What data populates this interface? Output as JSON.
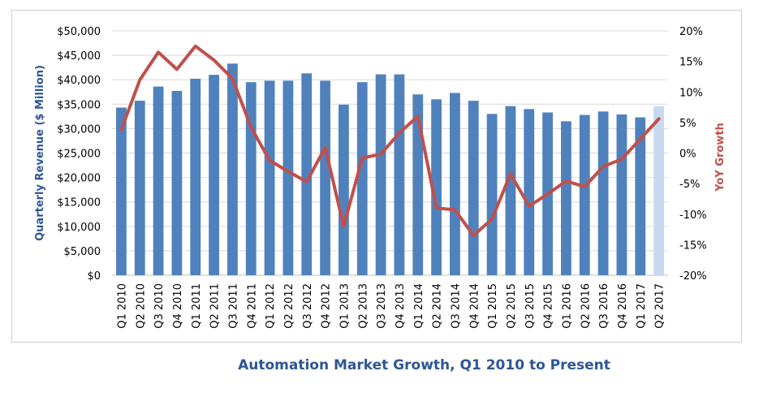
{
  "caption": "Automation Market Growth, Q1 2010 to Present",
  "chart_data": {
    "type": "bar",
    "categories": [
      "Q1 2010",
      "Q2 2010",
      "Q3 2010",
      "Q4 2010",
      "Q1 2011",
      "Q2 2011",
      "Q3 2011",
      "Q4 2011",
      "Q1 2012",
      "Q2 2012",
      "Q3 2012",
      "Q4 2012",
      "Q1 2013",
      "Q2 2013",
      "Q3 2013",
      "Q4 2013",
      "Q1 2014",
      "Q2 2014",
      "Q3 2014",
      "Q4 2014",
      "Q1 2015",
      "Q2 2015",
      "Q3 2015",
      "Q4 2015",
      "Q1 2016",
      "Q2 2016",
      "Q3 2016",
      "Q4 2016",
      "Q1 2017",
      "Q2 2017"
    ],
    "series": [
      {
        "type": "bar",
        "axis": "left",
        "values": [
          34300,
          35700,
          38600,
          37700,
          40200,
          41000,
          43300,
          39500,
          39800,
          39800,
          41300,
          39800,
          34900,
          39500,
          41100,
          41100,
          37000,
          36000,
          37300,
          35700,
          33000,
          34600,
          34000,
          33300,
          31500,
          32800,
          33500,
          32900,
          32300,
          34600
        ]
      },
      {
        "type": "line",
        "axis": "right",
        "values": [
          3.8,
          12.0,
          16.5,
          13.7,
          17.5,
          15.2,
          12.2,
          4.2,
          -1.2,
          -3.0,
          -4.7,
          0.9,
          -12.0,
          -0.8,
          -0.2,
          3.3,
          6.0,
          -9.0,
          -9.3,
          -13.5,
          -10.8,
          -3.4,
          -8.7,
          -6.7,
          -4.6,
          -5.5,
          -2.2,
          -1.0,
          2.3,
          5.6
        ]
      }
    ],
    "bar_colors": [
      "#4f81bd",
      "#4f81bd",
      "#4f81bd",
      "#4f81bd",
      "#4f81bd",
      "#4f81bd",
      "#4f81bd",
      "#4f81bd",
      "#4f81bd",
      "#4f81bd",
      "#4f81bd",
      "#4f81bd",
      "#4f81bd",
      "#4f81bd",
      "#4f81bd",
      "#4f81bd",
      "#4f81bd",
      "#4f81bd",
      "#4f81bd",
      "#4f81bd",
      "#4f81bd",
      "#4f81bd",
      "#4f81bd",
      "#4f81bd",
      "#4f81bd",
      "#4f81bd",
      "#4f81bd",
      "#4f81bd",
      "#4f81bd",
      "#c6d9f1"
    ],
    "line_color": "#c0504d",
    "ylabel": "Quarterly Revenue ($ Million)",
    "ylabel_color": "#2e5597",
    "y2label": "YoY Growth",
    "y2label_color": "#c0504d",
    "ylim": [
      0,
      50000
    ],
    "y2lim": [
      -20,
      20
    ],
    "yticks": [
      "$0",
      "$5,000",
      "$10,000",
      "$15,000",
      "$20,000",
      "$25,000",
      "$30,000",
      "$35,000",
      "$40,000",
      "$45,000",
      "$50,000"
    ],
    "y2ticks": [
      "-20%",
      "-15%",
      "-10%",
      "-5%",
      "0%",
      "5%",
      "10%",
      "15%",
      "20%"
    ],
    "grid": true,
    "legend": "none"
  }
}
